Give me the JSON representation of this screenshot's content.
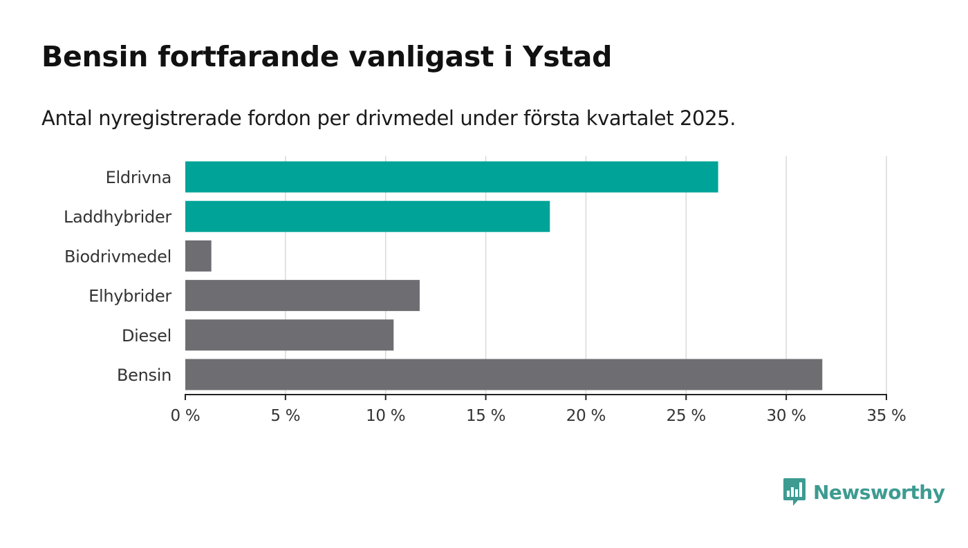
{
  "title": "Bensin fortfarande vanligast i Ystad",
  "subtitle": "Antal nyregistrerade fordon per drivmedel under första kvartalet 2025.",
  "brand": {
    "name": "Newsworthy",
    "icon": "newsworthy-logo-icon",
    "color": "#3d9b91"
  },
  "colors": {
    "highlight": "#00a398",
    "default": "#6e6d72",
    "grid": "#d9d9d9",
    "axis": "#222222"
  },
  "chart_data": {
    "type": "bar",
    "orientation": "horizontal",
    "categories": [
      "Eldrivna",
      "Laddhybrider",
      "Biodrivmedel",
      "Elhybrider",
      "Diesel",
      "Bensin"
    ],
    "values": [
      26.6,
      18.2,
      1.3,
      11.7,
      10.4,
      31.8
    ],
    "highlighted": [
      true,
      true,
      false,
      false,
      false,
      false
    ],
    "xlim": [
      0,
      35
    ],
    "ticks": [
      0,
      5,
      10,
      15,
      20,
      25,
      30,
      35
    ],
    "tick_labels": [
      "0 %",
      "5 %",
      "10 %",
      "15 %",
      "20 %",
      "25 %",
      "30 %",
      "35 %"
    ],
    "unit": "%",
    "grid": true,
    "legend": "none"
  }
}
